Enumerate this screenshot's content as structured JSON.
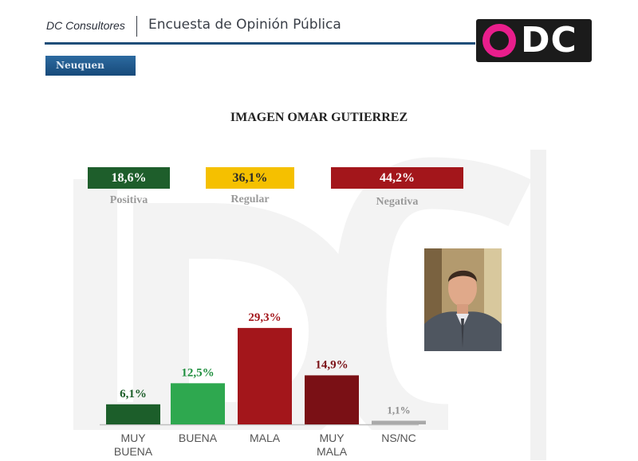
{
  "header": {
    "brand": "DC Consultores",
    "survey_title": "Encuesta de Opinión Pública",
    "region": "Neuquen",
    "logo_text": "DC"
  },
  "summary": [
    {
      "value": "18,6%",
      "label": "Positiva",
      "color": "#1e5e2b",
      "text_color": "#ffffff"
    },
    {
      "value": "36,1%",
      "label": "Regular",
      "color": "#f5c000",
      "text_color": "#2a2a2a"
    },
    {
      "value": "44,2%",
      "label": "Negativa",
      "color": "#a3161b",
      "text_color": "#ffffff"
    }
  ],
  "chart_data": {
    "type": "bar",
    "title": "IMAGEN OMAR GUTIERREZ",
    "categories": [
      "MUY BUENA",
      "BUENA",
      "MALA",
      "MUY MALA",
      "NS/NC"
    ],
    "values": [
      6.1,
      12.5,
      29.3,
      14.9,
      1.1
    ],
    "data_labels": [
      "6,1%",
      "12,5%",
      "29,3%",
      "14,9%",
      "1,1%"
    ],
    "colors": [
      "#1c5e2a",
      "#2ea84f",
      "#a3161b",
      "#7a1015",
      "#a9a9a9"
    ],
    "label_colors": [
      "#1c5e2a",
      "#1f8f3e",
      "#a3161b",
      "#7a1015",
      "#8c8c8c"
    ],
    "ylim": [
      0,
      30
    ],
    "grid": false,
    "legend": "none"
  }
}
